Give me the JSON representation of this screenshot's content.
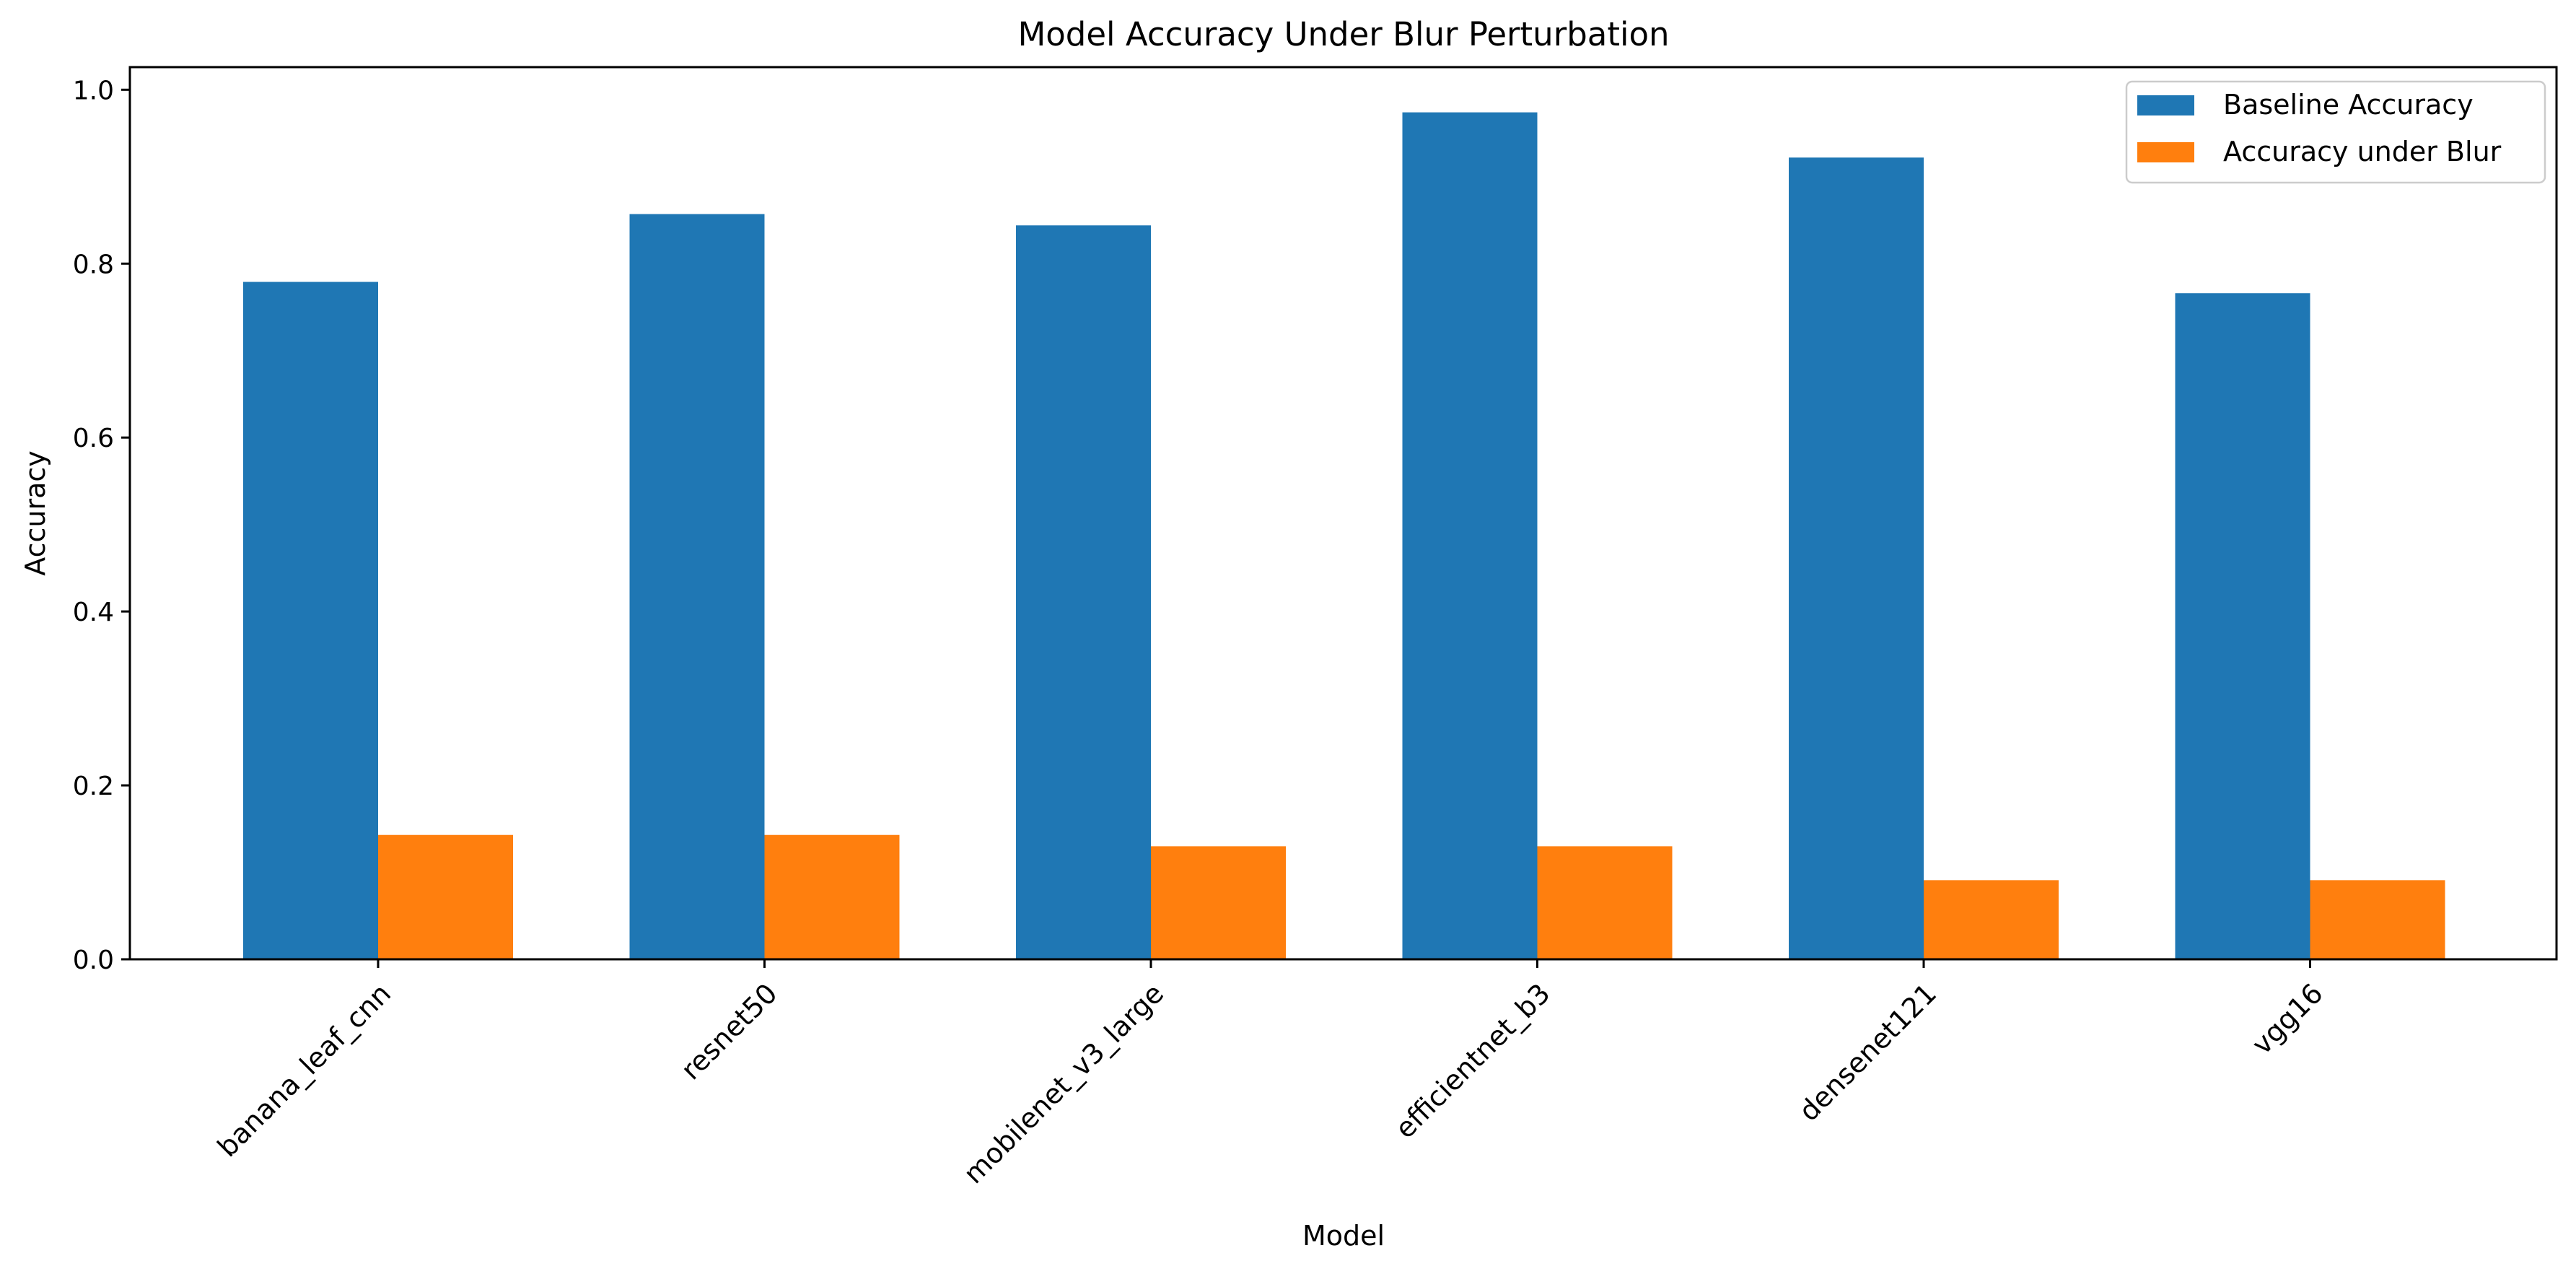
{
  "chart_data": {
    "type": "bar",
    "title": "Model Accuracy Under Blur Perturbation",
    "xlabel": "Model",
    "ylabel": "Accuracy",
    "categories": [
      "banana_leaf_cnn",
      "resnet50",
      "mobilenet_v3_large",
      "efficientnet_b3",
      "densenet121",
      "vgg16"
    ],
    "series": [
      {
        "name": "Baseline Accuracy",
        "color": "#1f77b4",
        "values": [
          0.779,
          0.857,
          0.844,
          0.974,
          0.922,
          0.766
        ]
      },
      {
        "name": "Accuracy under Blur",
        "color": "#ff7f0e",
        "values": [
          0.143,
          0.143,
          0.13,
          0.13,
          0.091,
          0.091
        ]
      }
    ],
    "ylim": [
      0,
      1.026
    ],
    "yticks": [
      "0.0",
      "0.2",
      "0.4",
      "0.6",
      "0.8",
      "1.0"
    ],
    "grid": false,
    "legend_position": "top-right"
  }
}
